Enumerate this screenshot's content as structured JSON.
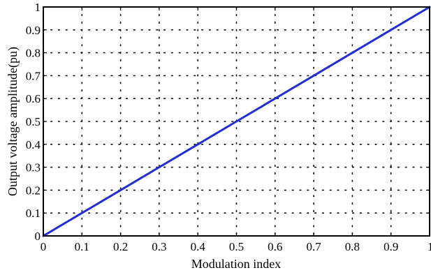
{
  "chart_data": {
    "type": "line",
    "title": "",
    "xlabel": "Modulation index",
    "ylabel": "Output voltage amplitude(pu)",
    "xlim": [
      0,
      1
    ],
    "ylim": [
      0,
      1
    ],
    "x_ticks": [
      0,
      0.1,
      0.2,
      0.3,
      0.4,
      0.5,
      0.6,
      0.7,
      0.8,
      0.9,
      1
    ],
    "y_ticks": [
      0,
      0.1,
      0.2,
      0.3,
      0.4,
      0.5,
      0.6,
      0.7,
      0.8,
      0.9,
      1
    ],
    "x_tick_labels": [
      "0",
      "0.1",
      "0.2",
      "0.3",
      "0.4",
      "0.5",
      "0.6",
      "0.7",
      "0.8",
      "0.9",
      "1"
    ],
    "y_tick_labels": [
      "0",
      "0.1",
      "0.2",
      "0.3",
      "0.4",
      "0.5",
      "0.6",
      "0.7",
      "0.8",
      "0.9",
      "1"
    ],
    "grid": true,
    "grid_style": "dotted",
    "series": [
      {
        "color": "#1f2ed6",
        "x": [
          0,
          0.1,
          0.2,
          0.3,
          0.4,
          0.5,
          0.6,
          0.7,
          0.8,
          0.9,
          1
        ],
        "y": [
          0,
          0.1,
          0.2,
          0.3,
          0.4,
          0.5,
          0.6,
          0.7,
          0.8,
          0.9,
          1
        ]
      }
    ]
  }
}
